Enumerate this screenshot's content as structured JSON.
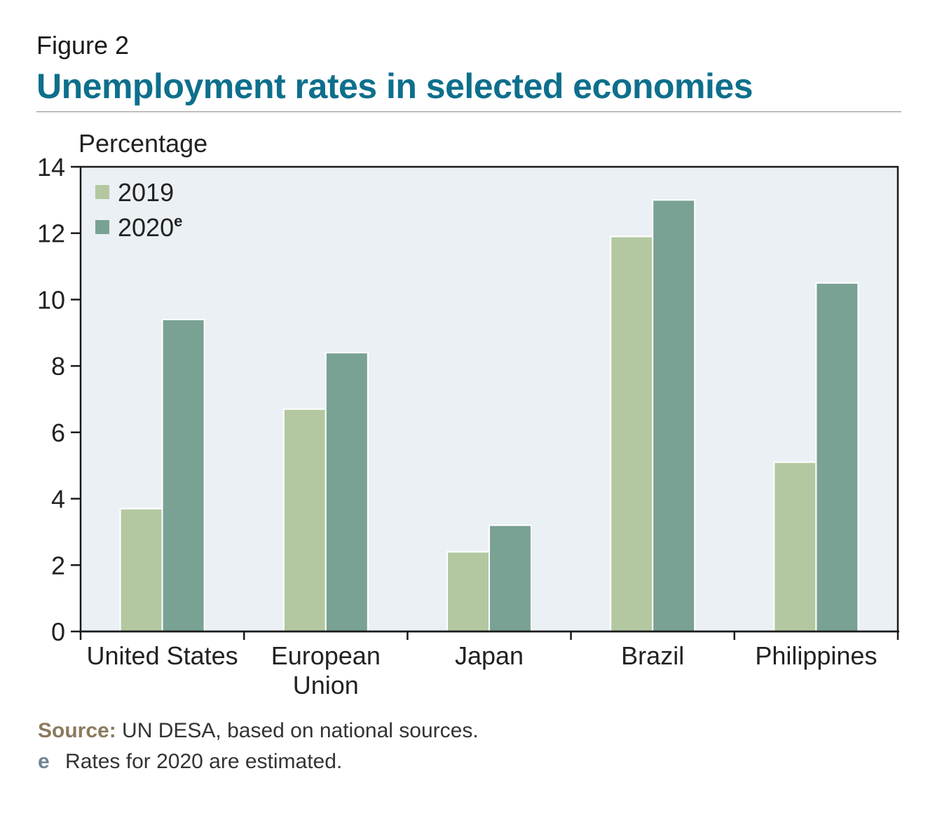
{
  "figure_label": "Figure 2",
  "title": "Unemployment rates in selected economies",
  "source_label": "Source:",
  "source_text": "UN DESA, based on national sources.",
  "note_mark": "e",
  "note_text": "Rates for 2020 are estimated.",
  "colors": {
    "title": "#0e6f8c",
    "plot_background": "#ebf0f4",
    "series_2019": "#b3c8a1",
    "series_2020": "#79a194"
  },
  "chart_data": {
    "type": "bar",
    "ylabel": "Percentage",
    "ylim": [
      0,
      14
    ],
    "yticks": [
      0,
      2,
      4,
      6,
      8,
      10,
      12,
      14
    ],
    "categories": [
      [
        "United States"
      ],
      [
        "European",
        "Union"
      ],
      [
        "Japan"
      ],
      [
        "Brazil"
      ],
      [
        "Philippines"
      ]
    ],
    "series": [
      {
        "name": "2019",
        "superscript": "",
        "values": [
          3.7,
          6.7,
          2.4,
          11.9,
          5.1
        ]
      },
      {
        "name": "2020",
        "superscript": "e",
        "values": [
          9.4,
          8.4,
          3.2,
          13.0,
          10.5
        ]
      }
    ],
    "legend": "top-left",
    "grid": false
  }
}
